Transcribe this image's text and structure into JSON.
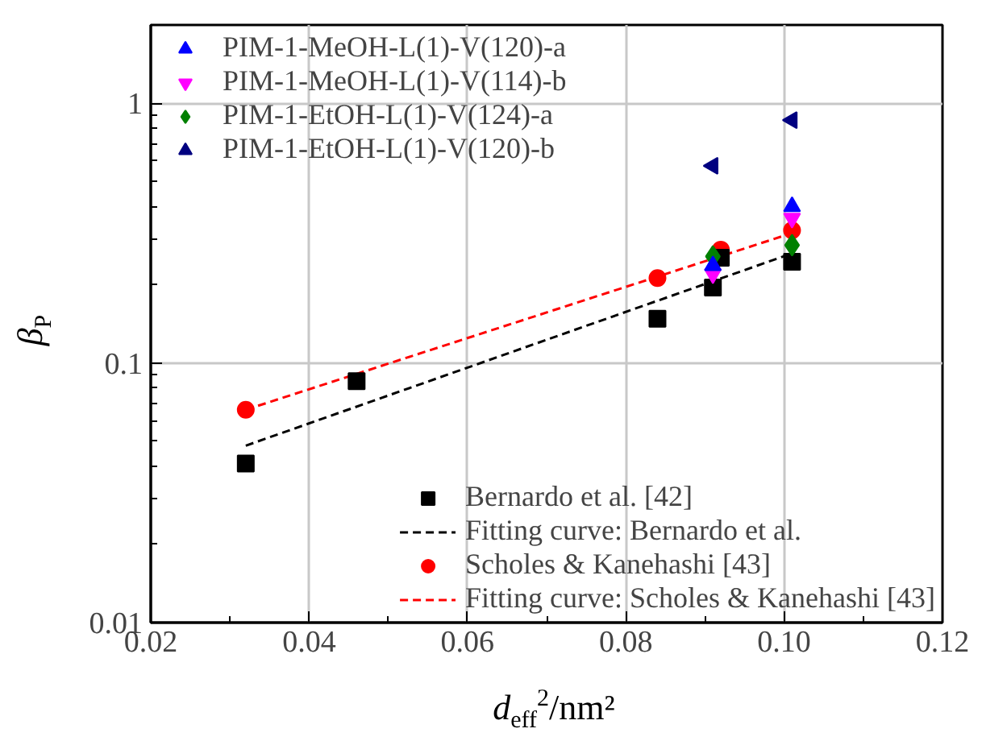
{
  "chart_data": {
    "type": "scatter",
    "xlabel": "d$_{eff}$$^{2}$/nm²",
    "ylabel": "β$_{P}$",
    "xlim": [
      0.02,
      0.12
    ],
    "ylim": [
      0.01,
      2
    ],
    "log": "y",
    "xticks": [
      0.02,
      0.04,
      0.06,
      0.08,
      {
        "value": 0.1,
        "label": "0.10"
      },
      0.12
    ],
    "yticks": [
      0.01,
      0.1,
      1
    ],
    "grid": true,
    "legend": [
      "top left",
      "bottom right"
    ],
    "series": [
      {
        "name": "PIM-1-MeOH-L(1)-V(120)-a",
        "color": "#0000ff",
        "marker": "triangle",
        "x": [
          0.091,
          0.101
        ],
        "values": [
          0.237,
          0.4
        ]
      },
      {
        "name": "PIM-1-MeOH-L(1)-V(114)-b",
        "color": "#ff00ff",
        "marker": "triangle_down",
        "x": [
          0.091,
          0.101
        ],
        "values": [
          0.22,
          0.36
        ]
      },
      {
        "name": "PIM-1-EtOH-L(1)-V(124)-a",
        "color": "#008000",
        "marker": "diamond",
        "x": [
          0.091,
          0.101
        ],
        "values": [
          0.257,
          0.284
        ]
      },
      {
        "name": "PIM-1-EtOH-L(1)-V(120)-b",
        "color": "#000080",
        "marker": "triangle_left",
        "x": [
          0.091,
          0.101
        ],
        "values": [
          0.574,
          0.86
        ]
      },
      {
        "name": "Bernardo et al. [42]",
        "color": "#000000",
        "marker": "square",
        "x": [
          0.032,
          0.046,
          0.084,
          0.091,
          0.092,
          0.101
        ],
        "values": [
          0.041,
          0.085,
          0.148,
          0.195,
          0.254,
          0.245
        ]
      },
      {
        "name": "Fitting curve: Bernardo et al.",
        "type": "line",
        "color": "#000000",
        "marker": "none",
        "line_style": "dashed",
        "x": [
          0.032,
          0.101
        ],
        "values": [
          0.048,
          0.264
        ]
      },
      {
        "name": "Scholes & Kanehashi [43]",
        "color": "#ff0000",
        "marker": "circle",
        "x": [
          0.032,
          0.084,
          0.092,
          0.101
        ],
        "values": [
          0.066,
          0.212,
          0.273,
          0.324
        ]
      },
      {
        "name": "Fitting curve: Scholes & Kanehashi [43]",
        "type": "line",
        "color": "#ff0000",
        "marker": "none",
        "line_style": "dashed",
        "x": [
          0.032,
          0.101
        ],
        "values": [
          0.066,
          0.316
        ]
      }
    ]
  }
}
